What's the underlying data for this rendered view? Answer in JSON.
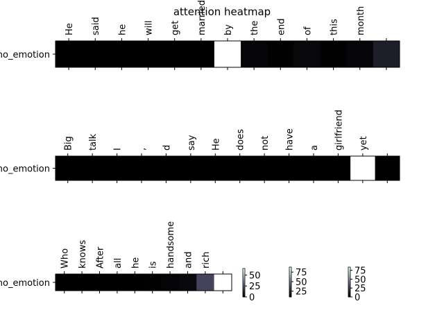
{
  "title": "attention heatmap",
  "chart_data": {
    "type": "heatmap",
    "title": "attention heatmap",
    "colormap": "bone",
    "panels": [
      {
        "row_label": "no_emotion",
        "tokens": [
          "He",
          "said",
          "he",
          "will",
          "get",
          "married",
          "by",
          "the",
          "end",
          "of",
          "this",
          "month",
          ""
        ],
        "values": [
          0,
          0,
          0,
          0,
          0,
          0,
          1.0,
          0.03,
          0.01,
          0.04,
          0.01,
          0.03,
          0.14
        ]
      },
      {
        "row_label": "no_emotion",
        "tokens": [
          "Big",
          "talk",
          "I",
          ",",
          "d",
          "say",
          "He",
          "does",
          "not",
          "have",
          "a",
          "girlfriend",
          "yet",
          ""
        ],
        "values": [
          0,
          0,
          0,
          0,
          0,
          0,
          0,
          0,
          0,
          0,
          0,
          0,
          1.0,
          0.01
        ]
      },
      {
        "row_label": "no_emotion",
        "tokens": [
          "Who",
          "knows",
          "After",
          "all",
          "he",
          "is",
          "handsome",
          "and",
          "rich",
          ""
        ],
        "values": [
          0,
          0,
          0,
          0,
          0,
          0.01,
          0.02,
          0.04,
          0.31,
          1.0
        ]
      }
    ],
    "colorbars": [
      {
        "ticks": [
          "0",
          "25",
          "50"
        ]
      },
      {
        "ticks": [
          "25",
          "50",
          "75"
        ]
      },
      {
        "ticks": [
          "0",
          "25",
          "50",
          "75"
        ]
      }
    ]
  }
}
